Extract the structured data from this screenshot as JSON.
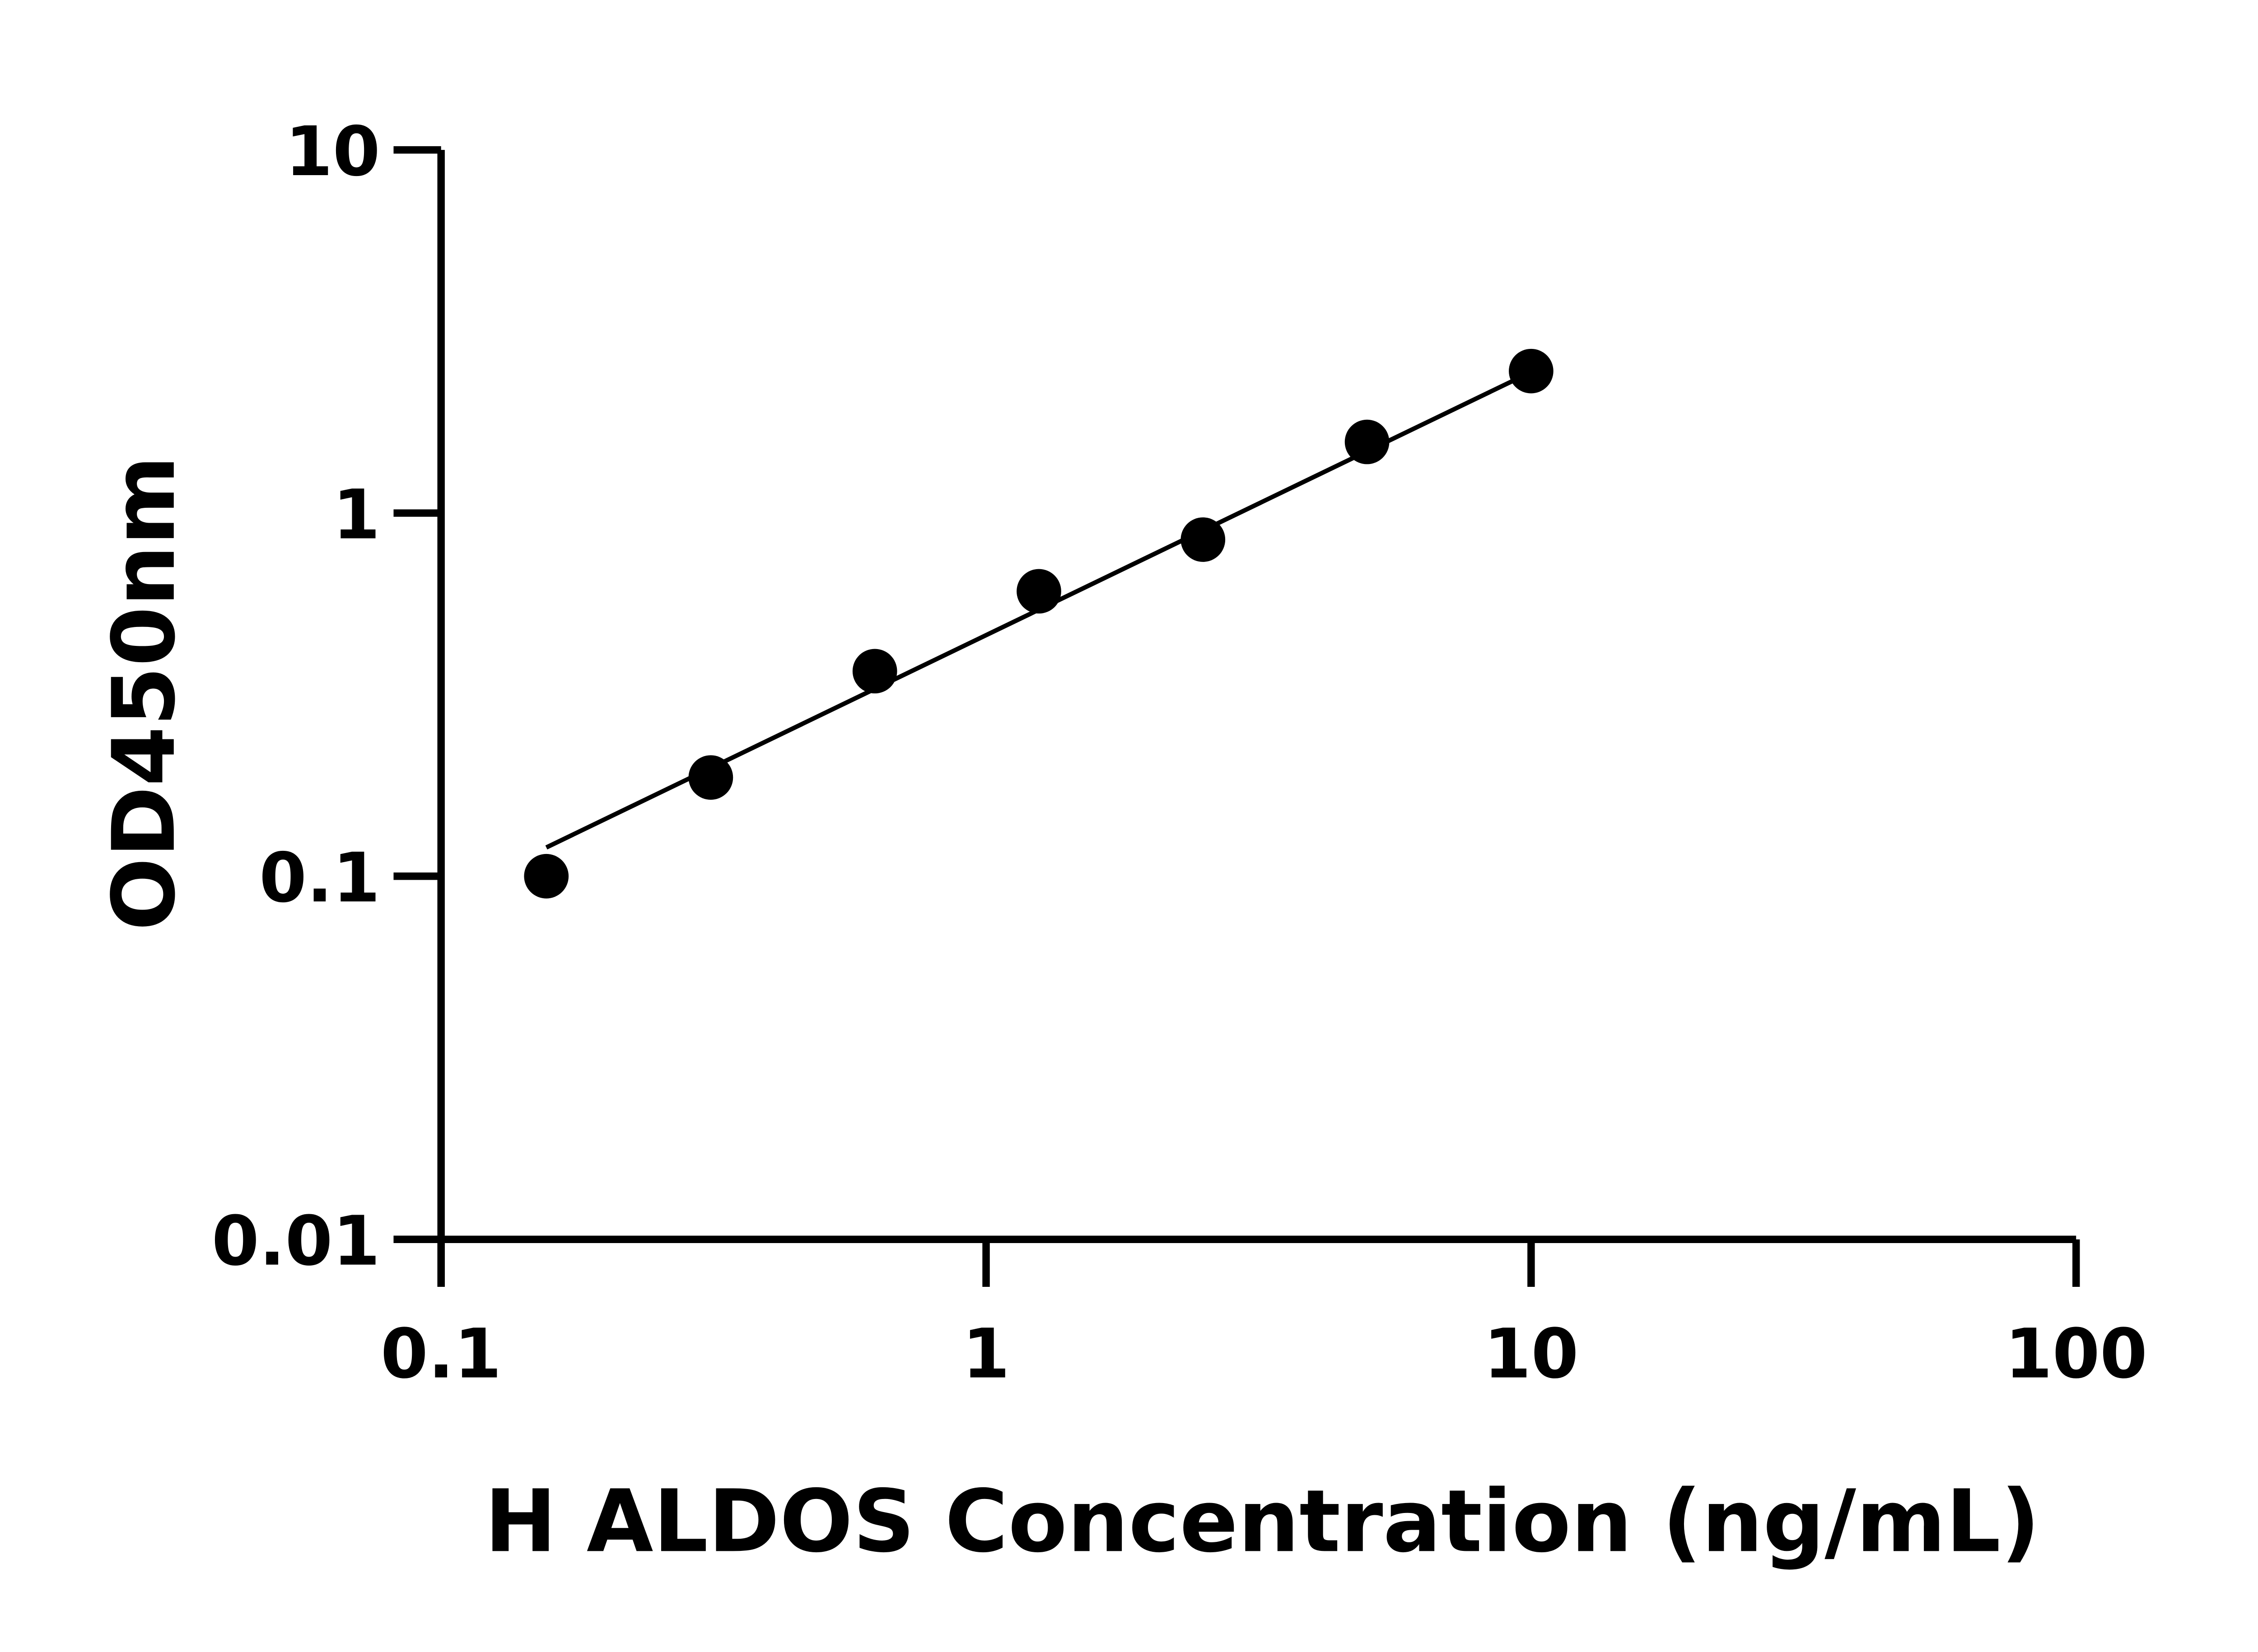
{
  "chart_data": {
    "type": "scatter",
    "title": "",
    "xlabel": "H ALDOS Concentration (ng/mL)",
    "ylabel": "OD450nm",
    "xscale": "log",
    "yscale": "log",
    "xlim": [
      0.1,
      100
    ],
    "ylim": [
      0.01,
      10
    ],
    "xticks": [
      {
        "value": 0.1,
        "label": "0.1"
      },
      {
        "value": 1,
        "label": "1"
      },
      {
        "value": 10,
        "label": "10"
      },
      {
        "value": 100,
        "label": "100"
      }
    ],
    "yticks": [
      {
        "value": 0.01,
        "label": "0.01"
      },
      {
        "value": 0.1,
        "label": "0.1"
      },
      {
        "value": 1,
        "label": "1"
      },
      {
        "value": 10,
        "label": "10"
      }
    ],
    "grid": false,
    "legend": "none",
    "marker_color": "#000000",
    "points": [
      {
        "x": 0.156,
        "y": 0.1
      },
      {
        "x": 0.3125,
        "y": 0.187
      },
      {
        "x": 0.625,
        "y": 0.367
      },
      {
        "x": 1.25,
        "y": 0.609
      },
      {
        "x": 2.5,
        "y": 0.845
      },
      {
        "x": 5,
        "y": 1.57
      },
      {
        "x": 10,
        "y": 2.46
      }
    ],
    "fit_line": [
      {
        "x": 0.156,
        "y": 0.12
      },
      {
        "x": 9.3,
        "y": 2.32
      }
    ]
  }
}
